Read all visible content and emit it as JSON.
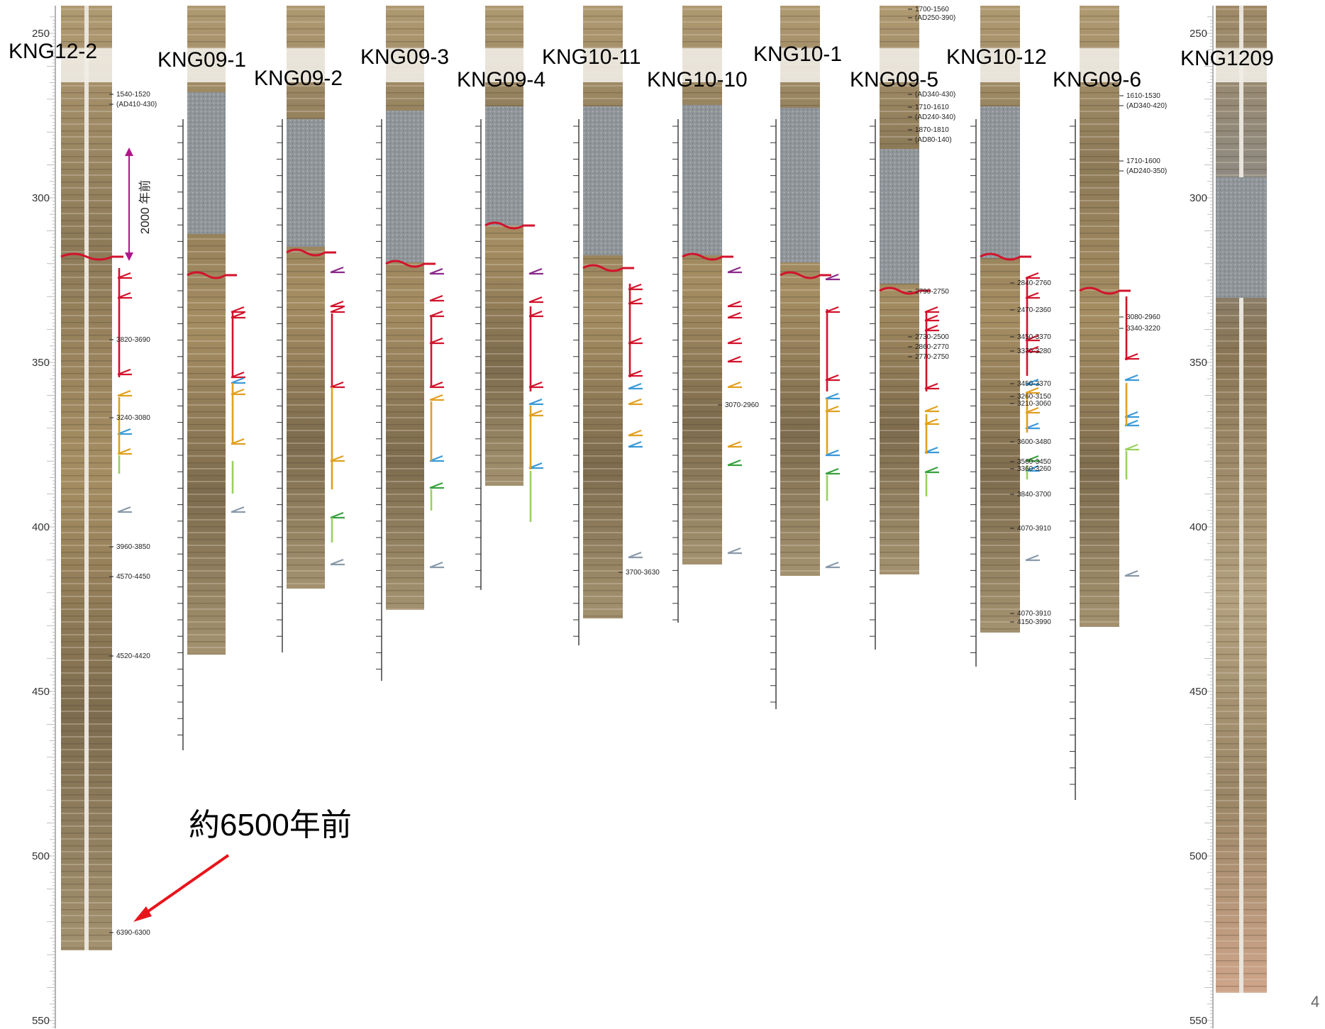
{
  "colors": {
    "event_red": "#d2132c",
    "event_purple": "#8a2a8a",
    "event_orange": "#e0a020",
    "event_blue": "#3a9ad8",
    "event_green": "#3aa040",
    "event_lightgreen": "#9ad060",
    "event_gray": "#8a9aaa",
    "boundary": "#d2132c",
    "arrow_red": "#e8141c",
    "bracket_magenta": "#b0168a",
    "sediment_brown": "#9a7f55",
    "gravel_gray": "#8f9599"
  },
  "depth_scale": {
    "left": [
      "250",
      "300",
      "350",
      "400",
      "450",
      "500",
      "550"
    ],
    "right": [
      "250",
      "300",
      "350",
      "400",
      "450",
      "500",
      "550"
    ]
  },
  "annotation": {
    "period_bracket": "2000 年前",
    "age_note": "約6500年前",
    "page_number": "4"
  },
  "cores": [
    {
      "id": "c0",
      "label": "KNG12-2",
      "dates": [
        "1540-1520",
        "(AD410-430)",
        "3820-3690",
        "3240-3080",
        "3960-3850",
        "4570-4450",
        "4520-4420",
        "6390-6300"
      ]
    },
    {
      "id": "c1",
      "label": "KNG09-1",
      "dates": []
    },
    {
      "id": "c2",
      "label": "KNG09-2",
      "dates": []
    },
    {
      "id": "c3",
      "label": "KNG09-3",
      "dates": []
    },
    {
      "id": "c4",
      "label": "KNG09-4",
      "dates": []
    },
    {
      "id": "c5",
      "label": "KNG10-11",
      "dates": [
        "3700-3630"
      ]
    },
    {
      "id": "c6",
      "label": "KNG10-10",
      "dates": [
        "3070-2960"
      ]
    },
    {
      "id": "c7",
      "label": "KNG10-1",
      "dates": []
    },
    {
      "id": "c8",
      "label": "KNG09-5",
      "dates": [
        "1700-1560",
        "(AD250-390)",
        "(AD340-430)",
        "1710-1610",
        "(AD240-340)",
        "1870-1810",
        "(AD80-140)",
        "2790-2750",
        "2730-2500",
        "2860-2770",
        "2770-2750"
      ]
    },
    {
      "id": "c9",
      "label": "KNG10-12",
      "dates": [
        "2840-2760",
        "2470-2360",
        "3450-3370",
        "3370-3280",
        "3450-3370",
        "3260-3150",
        "3210-3060",
        "3600-3480",
        "3560-3450",
        "3360-3260",
        "3840-3700",
        "4070-3910",
        "4070-3910",
        "4150-3990"
      ]
    },
    {
      "id": "c10",
      "label": "KNG09-6",
      "dates": [
        "1610-1530",
        "(AD340-420)",
        "1710-1600",
        "(AD240-350)",
        "3080-2960",
        "3340-3220"
      ]
    },
    {
      "id": "c11",
      "label": "KNG1209",
      "dates": []
    }
  ]
}
